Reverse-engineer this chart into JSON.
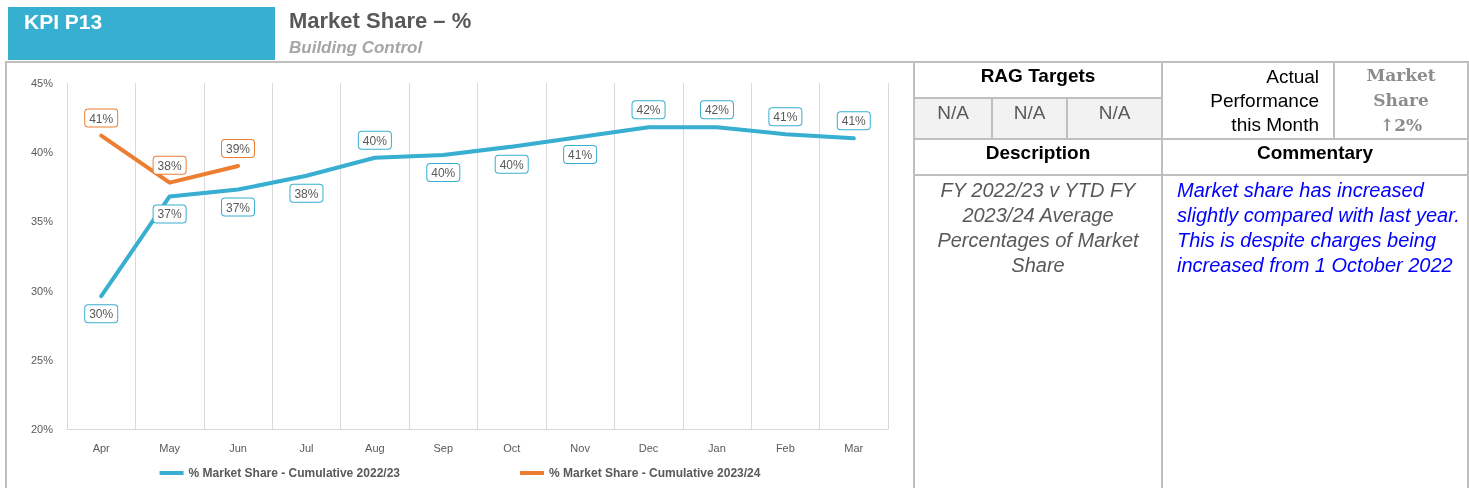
{
  "chart_data": [
    {
      "type": "line",
      "title": "Market Share – %",
      "subtitle": "Building Control",
      "annotations": [
        "KPI P13"
      ],
      "categories": [
        "Apr",
        "May",
        "Jun",
        "Jul",
        "Aug",
        "Sep",
        "Oct",
        "Nov",
        "Dec",
        "Jan",
        "Feb",
        "Mar"
      ],
      "series": [
        {
          "name": "% Market Share - Cumulative 2022/23",
          "color": "#38aed0",
          "values": [
            29.6,
            36.8,
            37.3,
            38.3,
            39.6,
            39.8,
            40.4,
            41.1,
            41.8,
            41.8,
            41.3,
            41.0
          ],
          "value_labels": [
            "30%",
            "37%",
            "37%",
            "38%",
            "40%",
            "40%",
            "40%",
            "41%",
            "42%",
            "42%",
            "41%",
            "41%"
          ]
        },
        {
          "name": "% Market Share - Cumulative 2023/24",
          "color": "#ed7d31",
          "values": [
            41.2,
            37.8,
            39.0,
            null,
            null,
            null,
            null,
            null,
            null,
            null,
            null,
            null
          ],
          "value_labels": [
            "41%",
            "38%",
            "39%",
            null,
            null,
            null,
            null,
            null,
            null,
            null,
            null,
            null
          ]
        }
      ],
      "ylim": [
        20,
        45
      ],
      "yticks": [
        {
          "value": 20,
          "label": "20%"
        },
        {
          "value": 25,
          "label": "25%"
        },
        {
          "value": 30,
          "label": "30%"
        },
        {
          "value": 35,
          "label": "35%"
        },
        {
          "value": 40,
          "label": "40%"
        },
        {
          "value": 45,
          "label": "45%"
        }
      ],
      "grid": "x",
      "legend": "bottom",
      "marker": "none"
    },
    {
      "type": "other",
      "annotations": [
        "RAG Targets",
        "N/A",
        "N/A",
        "N/A",
        "Actual Performance this Month",
        "Market Share ↑2%",
        "Description",
        "Commentary",
        "FY 2022/23 v YTD FY 2023/24 Average Percentages of Market Share",
        "Market share has increased slightly compared with last year. This is despite charges being increased from 1 October 2022"
      ]
    }
  ]
}
